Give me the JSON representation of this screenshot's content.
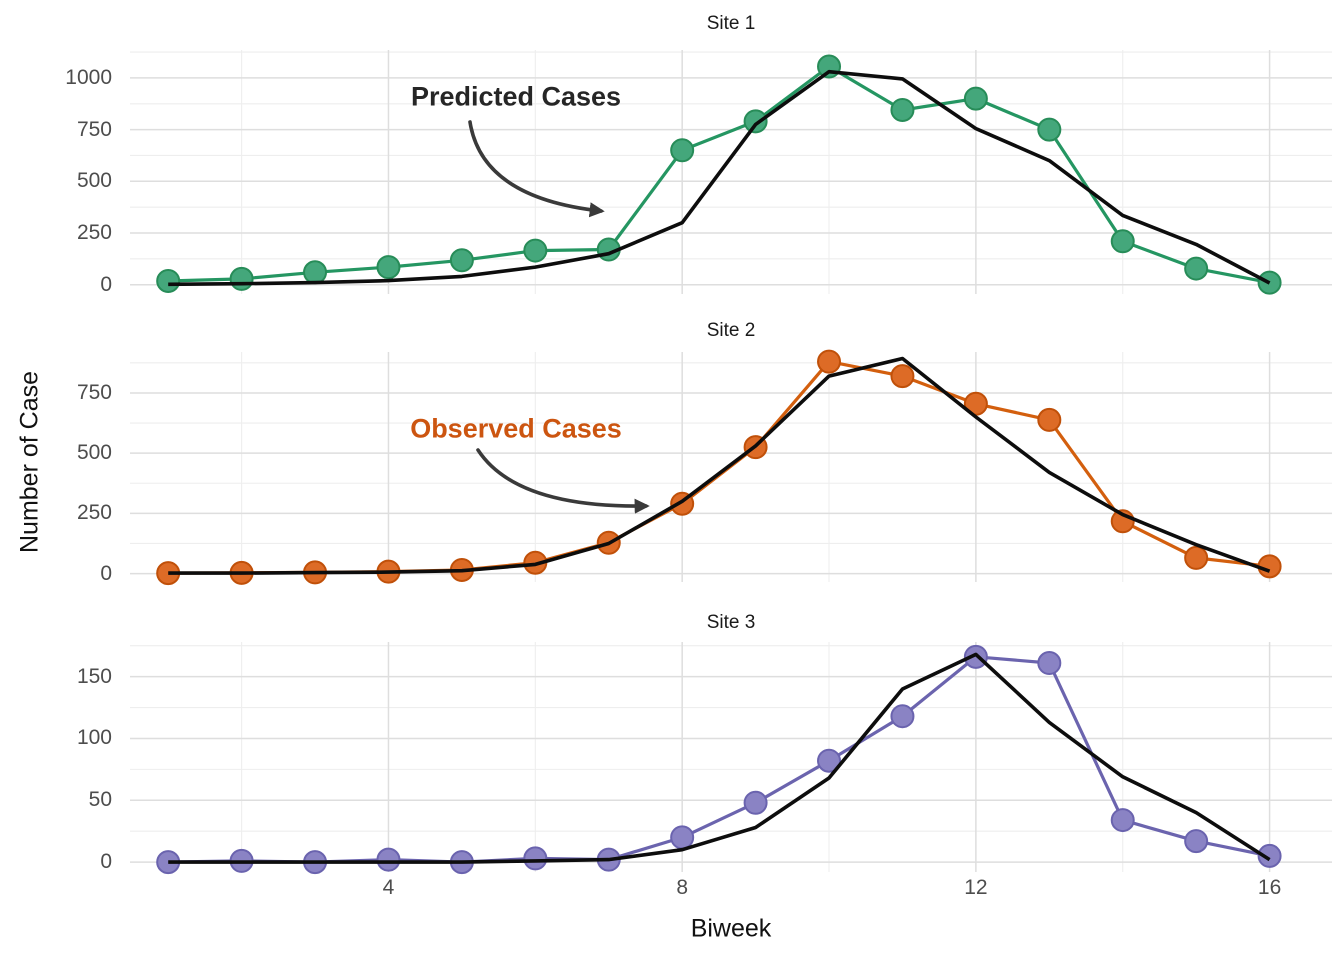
{
  "figure": {
    "x_label": "Biweek",
    "y_label": "Number of Case",
    "background_color": "#FFFFFF",
    "grid_major_color": "#DEDEDE",
    "grid_minor_color": "#EEEEEE",
    "tick_label_color": "#4D4D4D",
    "panel_title_color": "#1A1A1A",
    "predicted_line_color": "#0D0D0D",
    "arrow_color": "#3A3A3A"
  },
  "annotations": {
    "predicted": {
      "text": "Predicted Cases",
      "color": "#262626"
    },
    "observed": {
      "text": "Observed Cases",
      "color": "#CC5510"
    }
  },
  "x_axis": {
    "label": "Biweek",
    "ticks": [
      4,
      8,
      12,
      16
    ],
    "ticks_minor": [
      2,
      6,
      10,
      14
    ],
    "xlim": [
      0.48,
      16.85
    ]
  },
  "chart_data": [
    {
      "type": "line",
      "title": "Site 1",
      "xlabel": "Biweek",
      "ylabel": "Number of Case",
      "x": [
        1,
        2,
        3,
        4,
        5,
        6,
        7,
        8,
        9,
        10,
        11,
        12,
        13,
        14,
        15,
        16
      ],
      "series": [
        {
          "name": "Observed Cases",
          "values": [
            18,
            28,
            60,
            85,
            118,
            165,
            170,
            650,
            790,
            1055,
            845,
            900,
            750,
            210,
            78,
            10
          ],
          "line_color": "#259662",
          "point_fill": "#44A77B",
          "point_stroke": "#278C58",
          "style": "line+points"
        },
        {
          "name": "Predicted Cases",
          "values": [
            2,
            5,
            10,
            20,
            40,
            85,
            150,
            300,
            775,
            1030,
            995,
            755,
            600,
            335,
            195,
            8
          ],
          "line_color": "#0D0D0D",
          "style": "line"
        }
      ],
      "yticks": [
        0,
        250,
        500,
        750,
        1000
      ],
      "yticks_minor": [
        125,
        375,
        625,
        875,
        1125
      ],
      "ylim": [
        -45,
        1135
      ],
      "grid": true,
      "legend": "none"
    },
    {
      "type": "line",
      "title": "Site 2",
      "xlabel": "Biweek",
      "ylabel": "Number of Case",
      "x": [
        1,
        2,
        3,
        4,
        5,
        6,
        7,
        8,
        9,
        10,
        11,
        12,
        13,
        14,
        15,
        16
      ],
      "series": [
        {
          "name": "Observed Cases",
          "values": [
            2,
            3,
            5,
            8,
            15,
            45,
            128,
            290,
            525,
            880,
            820,
            705,
            638,
            217,
            65,
            30
          ],
          "line_color": "#D35F0E",
          "point_fill": "#DD6B26",
          "point_stroke": "#C05009",
          "style": "line+points"
        },
        {
          "name": "Predicted Cases",
          "values": [
            2,
            2,
            4,
            6,
            12,
            38,
            125,
            300,
            530,
            820,
            893,
            650,
            420,
            245,
            120,
            10
          ],
          "line_color": "#0D0D0D",
          "style": "line"
        }
      ],
      "yticks": [
        0,
        250,
        500,
        750
      ],
      "yticks_minor": [
        125,
        375,
        625,
        875
      ],
      "ylim": [
        -35,
        920
      ],
      "grid": true,
      "legend": "none"
    },
    {
      "type": "line",
      "title": "Site 3",
      "xlabel": "Biweek",
      "ylabel": "Number of Case",
      "x": [
        1,
        2,
        3,
        4,
        5,
        6,
        7,
        8,
        9,
        10,
        11,
        12,
        13,
        14,
        15,
        16
      ],
      "series": [
        {
          "name": "Observed Cases",
          "values": [
            0,
            1,
            0,
            2,
            0,
            3,
            2,
            20,
            48,
            82,
            118,
            166,
            161,
            34,
            17,
            5
          ],
          "line_color": "#6B64AE",
          "point_fill": "#8A83C4",
          "point_stroke": "#6A63AE",
          "style": "line+points"
        },
        {
          "name": "Predicted Cases",
          "values": [
            0,
            0,
            0,
            0,
            0,
            1,
            2,
            10,
            28,
            68,
            140,
            168,
            113,
            69,
            40,
            2
          ],
          "line_color": "#0D0D0D",
          "style": "line"
        }
      ],
      "yticks": [
        0,
        50,
        100,
        150
      ],
      "yticks_minor": [
        25,
        75,
        125,
        175
      ],
      "ylim": [
        -8,
        178
      ],
      "grid": true,
      "legend": "none"
    }
  ]
}
